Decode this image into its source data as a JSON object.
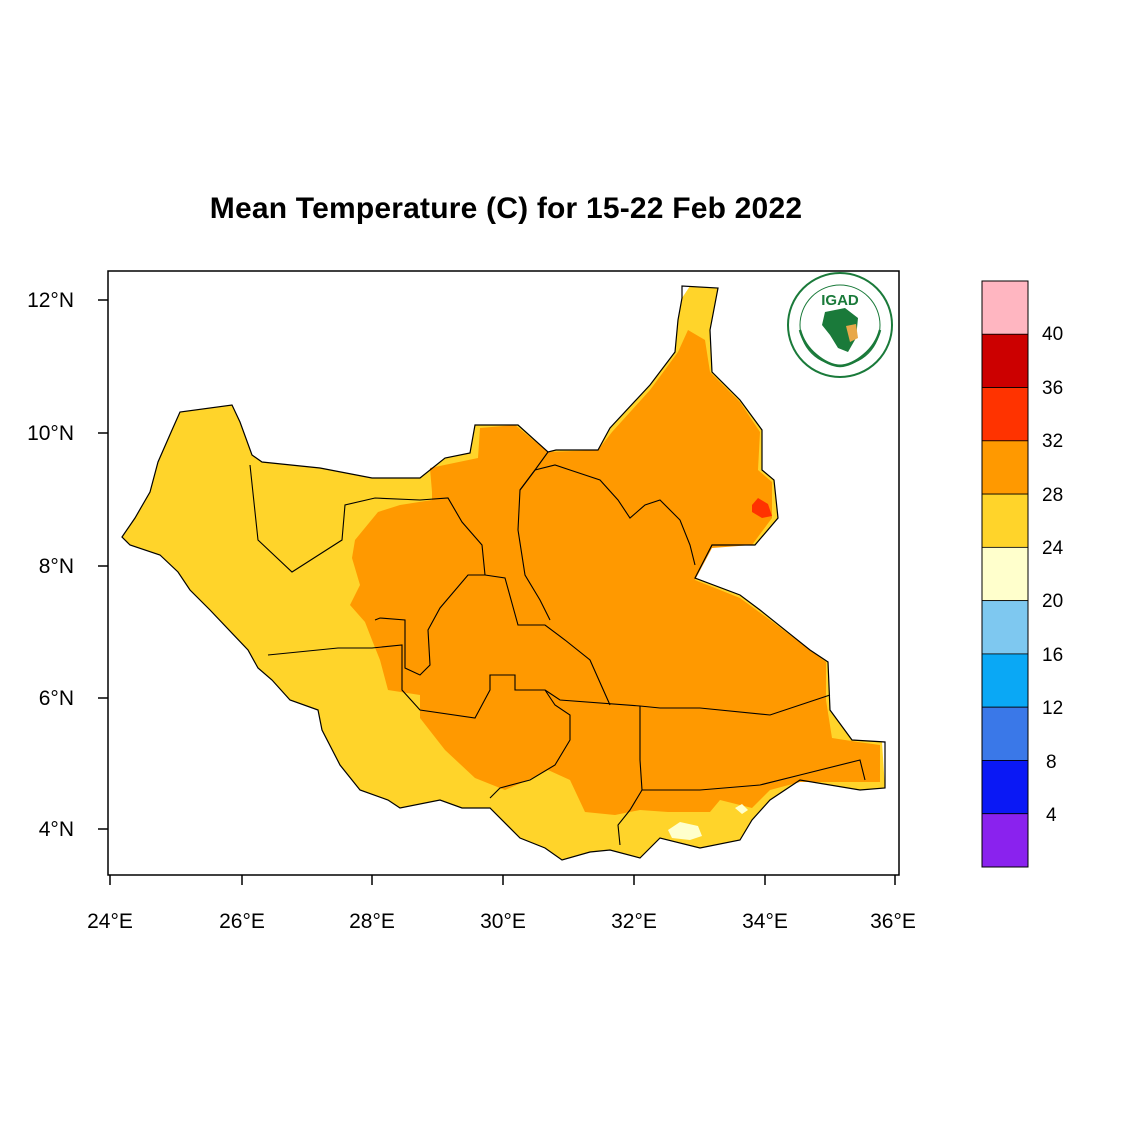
{
  "title": "Mean Temperature (C) for 15-22 Feb 2022",
  "logo": {
    "text": "IGAD",
    "ring_text": "INTERGOVERNMENTAL AUTHORITY ON DEVELOPMENT",
    "icon": "igad-logo-icon"
  },
  "axes": {
    "x_ticks": [
      "24°E",
      "26°E",
      "28°E",
      "30°E",
      "32°E",
      "34°E",
      "36°E"
    ],
    "y_ticks": [
      "12°N",
      "10°N",
      "8°N",
      "6°N",
      "4°N"
    ]
  },
  "colorbar": {
    "labels": [
      "40",
      "36",
      "32",
      "28",
      "24",
      "20",
      "16",
      "12",
      "8",
      "4"
    ],
    "colors": [
      "#ffb6c1",
      "#cc0000",
      "#ff3300",
      "#ff9900",
      "#ffd42a",
      "#ffffcc",
      "#7ec8f0",
      "#0aa8f5",
      "#3a78e8",
      "#0a18f5",
      "#8a22ee"
    ]
  },
  "colors": {
    "warm": "#ffd42a",
    "hot": "#ff9900",
    "very_hot": "#ff3300",
    "mild": "#ffffcc",
    "border": "#000000"
  }
}
